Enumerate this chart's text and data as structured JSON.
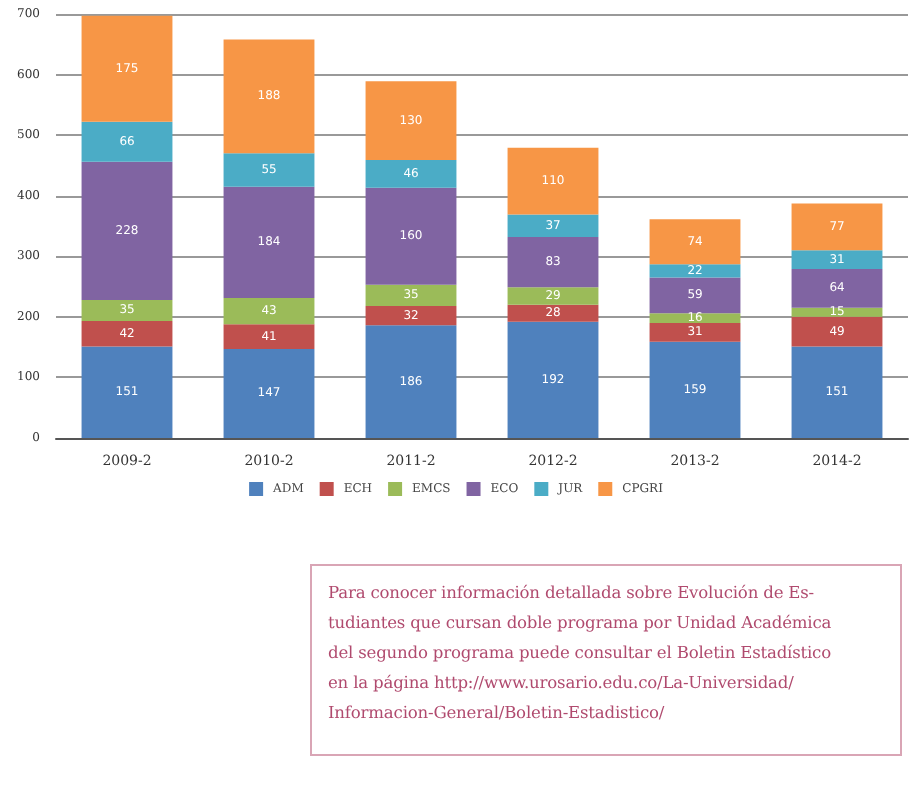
{
  "chart_data": {
    "type": "bar",
    "stacked": true,
    "categories": [
      "2009-2",
      "2010-2",
      "2011-2",
      "2012-2",
      "2013-2",
      "2014-2"
    ],
    "series": [
      {
        "name": "ADM",
        "color": "#4f81bd",
        "values": [
          151,
          147,
          186,
          192,
          159,
          151
        ]
      },
      {
        "name": "ECH",
        "color": "#c0504d",
        "values": [
          42,
          41,
          32,
          28,
          31,
          49
        ]
      },
      {
        "name": "EMCS",
        "color": "#9bbb59",
        "values": [
          35,
          43,
          35,
          29,
          16,
          15
        ]
      },
      {
        "name": "ECO",
        "color": "#8064a2",
        "values": [
          228,
          184,
          160,
          83,
          59,
          64
        ]
      },
      {
        "name": "JUR",
        "color": "#4bacc6",
        "values": [
          66,
          55,
          46,
          37,
          22,
          31
        ]
      },
      {
        "name": "CPGRI",
        "color": "#f79646",
        "values": [
          175,
          188,
          130,
          110,
          74,
          77
        ]
      }
    ],
    "ylim": [
      0,
      700
    ],
    "yticks": [
      0,
      100,
      200,
      300,
      400,
      500,
      600,
      700
    ],
    "grid": "y",
    "legend": "bottom",
    "data_labels": true,
    "annotations": [
      "Para conocer información detallada sobre Evolución de Es-\ntudiantes que cursan doble programa por Unidad Académica\ndel segundo programa puede consultar el Boletin Estadístico\nen la página http://www.urosario.edu.co/La-Universidad/\nInformacion-General/Boletin-Estadistico/"
    ]
  }
}
